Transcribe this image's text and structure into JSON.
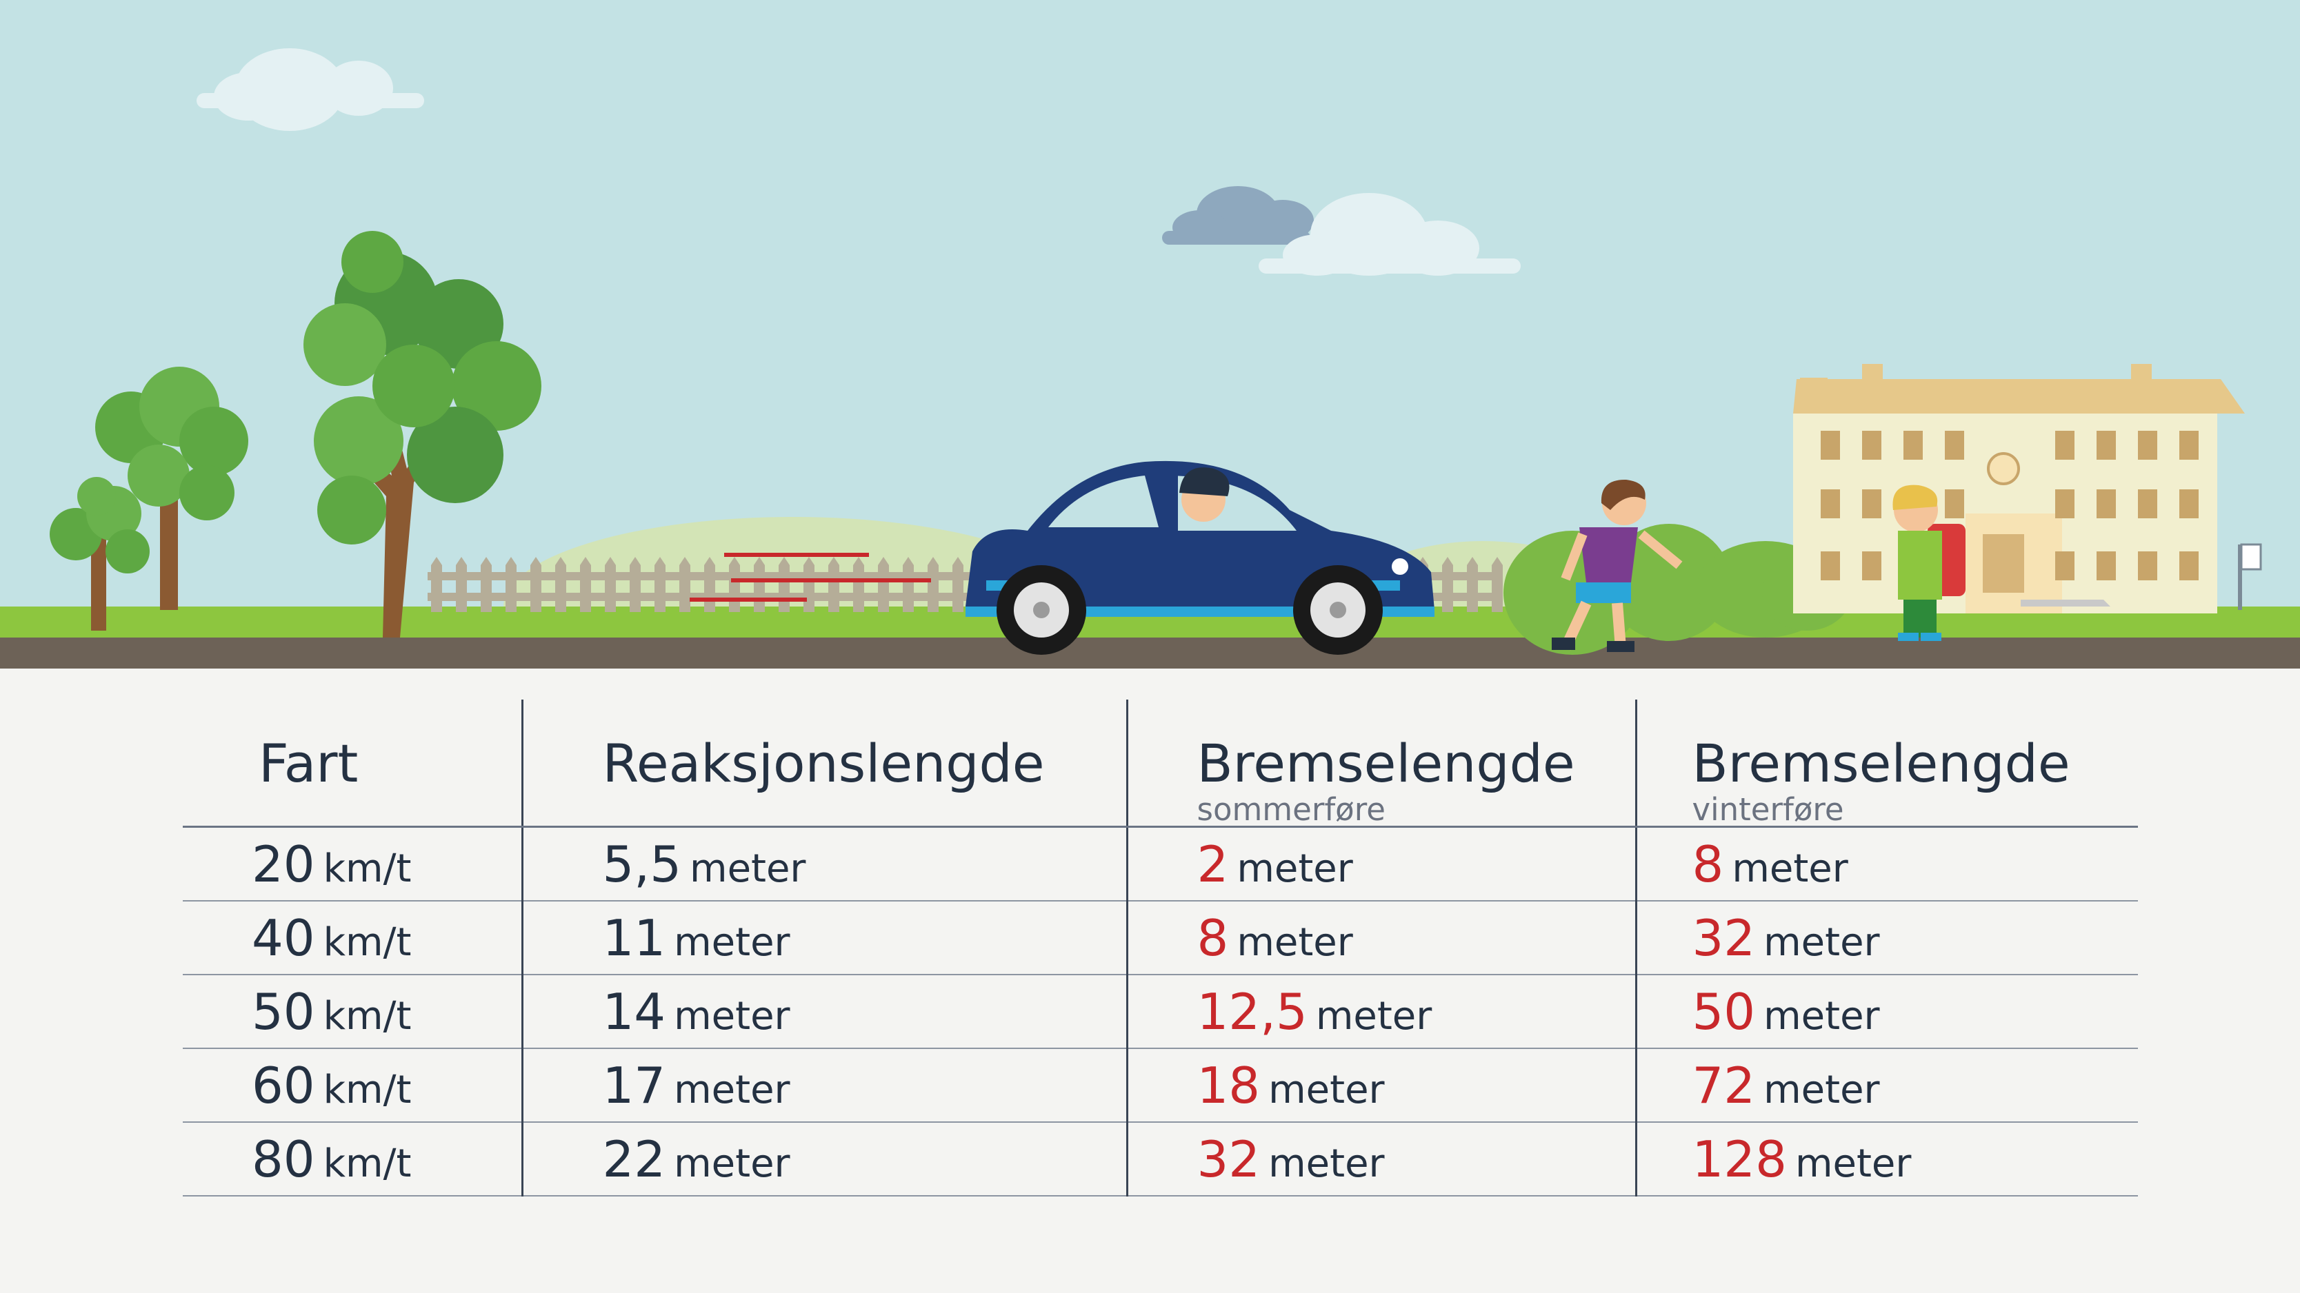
{
  "headers": {
    "fart": "Fart",
    "reaksjon": "Reaksjonslengde",
    "brems_sommer": "Bremselengde",
    "brems_sommer_sub": "sommerføre",
    "brems_vinter": "Bremselengde",
    "brems_vinter_sub": "vinterføre"
  },
  "rows": [
    {
      "speed": "20",
      "speed_unit": "km/t",
      "reaction": "5,5",
      "summer": "2",
      "winter": "8",
      "unit": "meter"
    },
    {
      "speed": "40",
      "speed_unit": "km/t",
      "reaction": "11",
      "summer": "8",
      "winter": "32",
      "unit": "meter"
    },
    {
      "speed": "50",
      "speed_unit": "km/t",
      "reaction": "14",
      "summer": "12,5",
      "winter": "50",
      "unit": "meter"
    },
    {
      "speed": "60",
      "speed_unit": "km/t",
      "reaction": "17",
      "summer": "18",
      "winter": "72",
      "unit": "meter"
    },
    {
      "speed": "80",
      "speed_unit": "km/t",
      "reaction": "22",
      "summer": "32",
      "winter": "128",
      "unit": "meter"
    }
  ],
  "colors": {
    "sky": "#c3e2e4",
    "grass": "#8dc63f",
    "road": "#6d6257",
    "car": "#1f3d7a",
    "accent_red": "#c8282b",
    "text": "#243142"
  }
}
